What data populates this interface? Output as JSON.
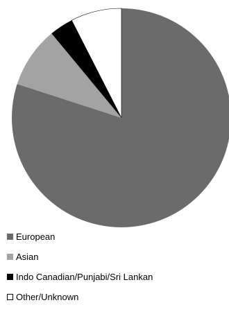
{
  "chart_data": {
    "type": "pie",
    "title": "",
    "start_angle_deg": 0,
    "direction": "clockwise",
    "series": [
      {
        "name": "European",
        "value": 80,
        "color": "#6b6b6b"
      },
      {
        "name": "Asian",
        "value": 9,
        "color": "#a3a3a3"
      },
      {
        "name": "Indo Canadian/Punjabi/Sri Lankan",
        "value": 3.5,
        "color": "#000000"
      },
      {
        "name": "Other/Unknown",
        "value": 7.5,
        "color": "#ffffff"
      }
    ],
    "legend_position": "bottom-left"
  }
}
